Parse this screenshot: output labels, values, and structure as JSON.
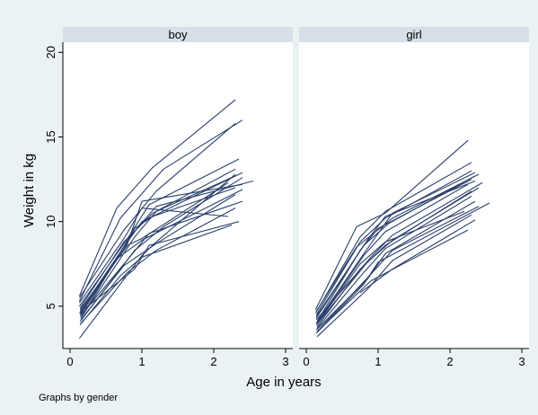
{
  "chart_data": {
    "type": "line",
    "xlabel": "Age in years",
    "ylabel": "Weight in kg",
    "note": "Graphs by gender",
    "xlim": [
      -0.1,
      3.1
    ],
    "ylim": [
      2.5,
      20.6
    ],
    "xticks": [
      0,
      1,
      2,
      3
    ],
    "yticks": [
      5,
      10,
      15,
      20
    ],
    "grid": false,
    "line_color": "#2a3f6b",
    "panels": [
      {
        "title": "boy",
        "series": [
          {
            "x": [
              0.13,
              0.65,
              1.15,
              2.3
            ],
            "y": [
              5.6,
              10.8,
              13.2,
              17.2
            ]
          },
          {
            "x": [
              0.13,
              0.7,
              1.3,
              2.4
            ],
            "y": [
              5.3,
              10.2,
              13.1,
              16.0
            ]
          },
          {
            "x": [
              0.13,
              0.75,
              1.2,
              2.3
            ],
            "y": [
              5.5,
              9.5,
              11.8,
              15.8
            ]
          },
          {
            "x": [
              0.13,
              0.8,
              1.1,
              2.35
            ],
            "y": [
              5.0,
              9.0,
              11.0,
              13.7
            ]
          },
          {
            "x": [
              0.14,
              0.75,
              1.15,
              2.3
            ],
            "y": [
              4.9,
              8.8,
              10.5,
              13.1
            ]
          },
          {
            "x": [
              0.14,
              0.7,
              1.0,
              2.4
            ],
            "y": [
              4.7,
              8.2,
              10.0,
              12.9
            ]
          },
          {
            "x": [
              0.15,
              0.85,
              1.2,
              2.55
            ],
            "y": [
              4.5,
              9.2,
              10.9,
              12.4
            ]
          },
          {
            "x": [
              0.14,
              0.8,
              1.0,
              2.2
            ],
            "y": [
              4.8,
              8.6,
              9.0,
              12.3
            ]
          },
          {
            "x": [
              0.15,
              0.9,
              1.15,
              2.3
            ],
            "y": [
              4.3,
              9.6,
              10.3,
              12.0
            ]
          },
          {
            "x": [
              0.14,
              0.65,
              1.0,
              2.4
            ],
            "y": [
              4.6,
              7.8,
              8.9,
              11.9
            ]
          },
          {
            "x": [
              0.15,
              0.75,
              1.2,
              2.3
            ],
            "y": [
              4.2,
              7.4,
              8.7,
              11.6
            ]
          },
          {
            "x": [
              0.14,
              0.85,
              1.1,
              2.4
            ],
            "y": [
              4.4,
              8.0,
              9.3,
              11.2
            ]
          },
          {
            "x": [
              0.15,
              0.8,
              1.2,
              2.3
            ],
            "y": [
              4.0,
              7.0,
              8.3,
              10.8
            ]
          },
          {
            "x": [
              0.13,
              0.75,
              1.0,
              2.2
            ],
            "y": [
              5.2,
              9.0,
              10.8,
              10.3
            ]
          },
          {
            "x": [
              0.14,
              0.9,
              1.3,
              2.4
            ],
            "y": [
              4.1,
              8.3,
              9.7,
              12.6
            ]
          },
          {
            "x": [
              0.13,
              0.9,
              1.1,
              2.35
            ],
            "y": [
              4.6,
              7.2,
              8.6,
              10.0
            ]
          },
          {
            "x": [
              0.14,
              0.7,
              1.0,
              2.25
            ],
            "y": [
              3.9,
              6.8,
              7.9,
              9.8
            ]
          },
          {
            "x": [
              0.13,
              1.0,
              1.2,
              2.3
            ],
            "y": [
              3.1,
              8.0,
              8.8,
              12.8
            ]
          },
          {
            "x": [
              0.14,
              0.8,
              1.0,
              2.4
            ],
            "y": [
              4.5,
              8.7,
              11.2,
              12.2
            ]
          },
          {
            "x": [
              0.15,
              0.9,
              1.2,
              2.3
            ],
            "y": [
              4.3,
              9.1,
              10.6,
              12.7
            ]
          }
        ]
      },
      {
        "title": "girl",
        "series": [
          {
            "x": [
              0.13,
              0.7,
              1.1,
              2.25
            ],
            "y": [
              4.8,
              9.7,
              10.5,
              14.8
            ]
          },
          {
            "x": [
              0.13,
              0.75,
              1.1,
              2.3
            ],
            "y": [
              4.6,
              9.1,
              10.6,
              13.5
            ]
          },
          {
            "x": [
              0.14,
              0.75,
              1.1,
              2.3
            ],
            "y": [
              4.5,
              8.8,
              10.2,
              13.0
            ]
          },
          {
            "x": [
              0.14,
              0.8,
              1.15,
              2.35
            ],
            "y": [
              4.3,
              8.6,
              9.9,
              12.7
            ]
          },
          {
            "x": [
              0.15,
              0.75,
              1.0,
              2.3
            ],
            "y": [
              4.1,
              8.3,
              9.6,
              12.5
            ]
          },
          {
            "x": [
              0.14,
              0.85,
              1.1,
              2.35
            ],
            "y": [
              4.4,
              8.9,
              10.3,
              12.4
            ]
          },
          {
            "x": [
              0.15,
              0.8,
              1.1,
              2.25
            ],
            "y": [
              4.0,
              8.0,
              9.4,
              12.2
            ]
          },
          {
            "x": [
              0.14,
              0.85,
              1.2,
              2.4
            ],
            "y": [
              3.9,
              7.6,
              8.9,
              12.0
            ]
          },
          {
            "x": [
              0.15,
              0.75,
              1.1,
              2.3
            ],
            "y": [
              3.8,
              7.2,
              8.6,
              11.8
            ]
          },
          {
            "x": [
              0.14,
              0.9,
              1.2,
              2.45
            ],
            "y": [
              4.2,
              7.9,
              9.2,
              12.3
            ]
          },
          {
            "x": [
              0.15,
              0.8,
              1.1,
              2.3
            ],
            "y": [
              3.7,
              7.0,
              8.4,
              11.5
            ]
          },
          {
            "x": [
              0.14,
              0.85,
              1.1,
              2.35
            ],
            "y": [
              3.6,
              6.6,
              8.1,
              11.2
            ]
          },
          {
            "x": [
              0.15,
              0.9,
              1.2,
              2.4
            ],
            "y": [
              3.5,
              6.9,
              8.3,
              10.9
            ]
          },
          {
            "x": [
              0.14,
              0.8,
              1.0,
              2.55
            ],
            "y": [
              3.4,
              6.3,
              7.6,
              11.1
            ]
          },
          {
            "x": [
              0.15,
              0.85,
              1.2,
              2.3
            ],
            "y": [
              3.2,
              6.0,
              7.7,
              10.4
            ]
          },
          {
            "x": [
              0.14,
              0.75,
              1.1,
              2.2
            ],
            "y": [
              3.9,
              7.5,
              8.8,
              10.6
            ]
          },
          {
            "x": [
              0.14,
              0.7,
              1.2,
              2.4
            ],
            "y": [
              4.7,
              8.5,
              10.2,
              12.8
            ]
          },
          {
            "x": [
              0.15,
              0.9,
              1.3,
              2.25
            ],
            "y": [
              3.5,
              6.5,
              7.4,
              9.5
            ]
          },
          {
            "x": [
              0.75,
              1.2,
              2.35
            ],
            "y": [
              5.8,
              7.2,
              10.1
            ]
          },
          {
            "x": [
              0.14,
              0.8,
              1.2,
              2.35
            ],
            "y": [
              4.0,
              8.1,
              10.5,
              12.9
            ]
          }
        ]
      }
    ]
  }
}
